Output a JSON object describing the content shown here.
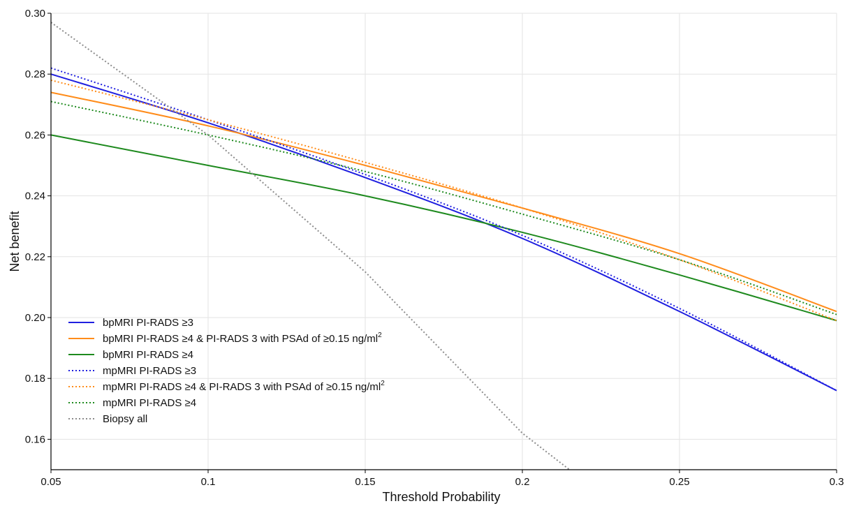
{
  "chart_data": {
    "type": "line",
    "title": "",
    "xlabel": "Threshold Probability",
    "ylabel": "Net benefit",
    "xlim": [
      0.05,
      0.3
    ],
    "ylim": [
      0.15,
      0.3
    ],
    "x_ticks": [
      "0.05",
      "0.1",
      "0.15",
      "0.2",
      "0.25",
      "0.3"
    ],
    "y_ticks": [
      "0.16",
      "0.18",
      "0.20",
      "0.22",
      "0.24",
      "0.26",
      "0.28",
      "0.30"
    ],
    "grid": true,
    "legend_position": "bottom-left",
    "series": [
      {
        "name": "bpMRI PI-RADS ≥3",
        "color": "#1f1fe0",
        "dash": "solid",
        "x": [
          0.05,
          0.1,
          0.15,
          0.2,
          0.25,
          0.3
        ],
        "y": [
          0.28,
          0.264,
          0.246,
          0.226,
          0.202,
          0.176
        ]
      },
      {
        "name": "bpMRI PI-RADS ≥4 & PI-RADS 3 with PSAd of ≥0.15 ng/ml",
        "name_sup": "2",
        "color": "#ff8c1a",
        "dash": "solid",
        "x": [
          0.05,
          0.1,
          0.15,
          0.2,
          0.25,
          0.3
        ],
        "y": [
          0.274,
          0.263,
          0.25,
          0.236,
          0.221,
          0.202
        ]
      },
      {
        "name": "bpMRI PI-RADS ≥4",
        "color": "#1e8a1e",
        "dash": "solid",
        "x": [
          0.05,
          0.1,
          0.15,
          0.2,
          0.25,
          0.3
        ],
        "y": [
          0.26,
          0.25,
          0.24,
          0.228,
          0.214,
          0.199
        ]
      },
      {
        "name": "mpMRI PI-RADS ≥3",
        "color": "#1f1fe0",
        "dash": "dotted",
        "x": [
          0.05,
          0.1,
          0.15,
          0.2,
          0.25,
          0.3
        ],
        "y": [
          0.282,
          0.265,
          0.247,
          0.227,
          0.203,
          0.176
        ]
      },
      {
        "name": "mpMRI PI-RADS ≥4 & PI-RADS 3 with PSAd of ≥0.15 ng/ml",
        "name_sup": "2",
        "color": "#ff8c1a",
        "dash": "dotted",
        "x": [
          0.05,
          0.1,
          0.15,
          0.2,
          0.25,
          0.3
        ],
        "y": [
          0.278,
          0.265,
          0.251,
          0.236,
          0.219,
          0.199
        ]
      },
      {
        "name": "mpMRI PI-RADS ≥4",
        "color": "#1e8a1e",
        "dash": "dotted",
        "x": [
          0.05,
          0.1,
          0.15,
          0.2,
          0.25,
          0.3
        ],
        "y": [
          0.271,
          0.26,
          0.248,
          0.234,
          0.219,
          0.201
        ]
      },
      {
        "name": "Biopsy all",
        "color": "#8c8c8c",
        "dash": "dotted",
        "x": [
          0.05,
          0.1,
          0.15,
          0.2,
          0.215
        ],
        "y": [
          0.297,
          0.26,
          0.215,
          0.162,
          0.15
        ]
      }
    ]
  }
}
